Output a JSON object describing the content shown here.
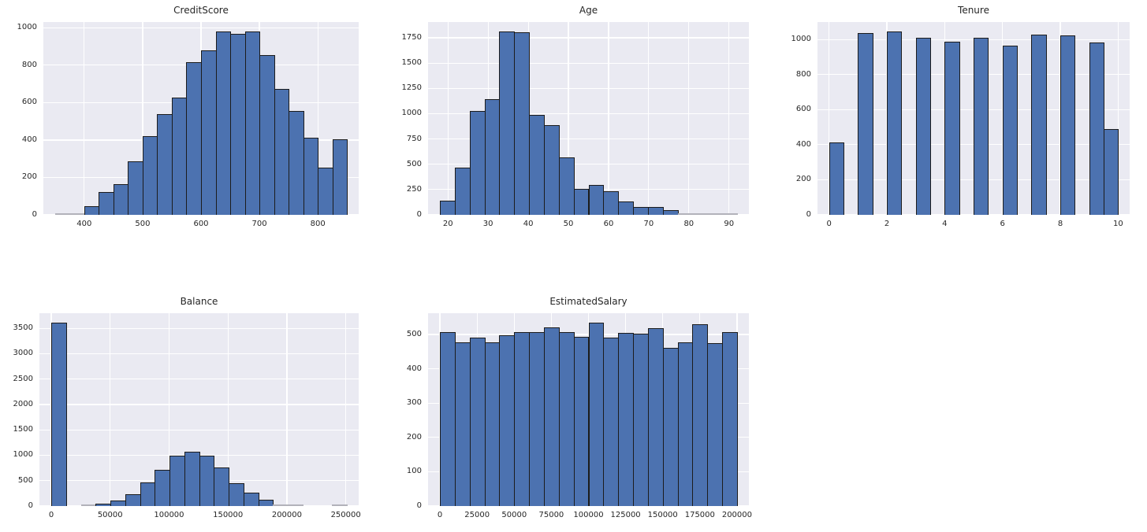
{
  "figure": {
    "background": "#ffffff",
    "description": "Grid of five histograms of dataset columns"
  },
  "style": {
    "bar_fill": "#4C72B0",
    "bar_edge": "#1c1c1c",
    "plot_background": "#eaeaf2",
    "gridline_color": "#ffffff",
    "text_color": "#262626"
  },
  "chart_data": [
    {
      "type": "bar",
      "subtype": "histogram",
      "title": "CreditScore",
      "xlabel": "",
      "ylabel": "",
      "x_range": [
        350,
        850
      ],
      "bins": 20,
      "values": [
        10,
        2,
        47,
        120,
        165,
        285,
        420,
        540,
        628,
        815,
        880,
        982,
        970,
        982,
        853,
        675,
        555,
        413,
        253,
        405
      ],
      "xticks": [
        {
          "label": "400",
          "value": 400
        },
        {
          "label": "500",
          "value": 500
        },
        {
          "label": "600",
          "value": 600
        },
        {
          "label": "700",
          "value": 700
        },
        {
          "label": "800",
          "value": 800
        }
      ],
      "yticks": [
        "0",
        "200",
        "400",
        "600",
        "800",
        "1000"
      ],
      "ytick_values": [
        0,
        200,
        400,
        600,
        800,
        1000
      ],
      "ylim": [
        0,
        1031
      ],
      "grid": true,
      "legend": false
    },
    {
      "type": "bar",
      "subtype": "histogram",
      "title": "Age",
      "xlabel": "",
      "ylabel": "",
      "x_range": [
        18,
        92
      ],
      "bins": 20,
      "values": [
        140,
        470,
        1030,
        1145,
        1815,
        1805,
        990,
        885,
        570,
        255,
        295,
        230,
        135,
        80,
        80,
        48,
        8,
        5,
        2,
        2
      ],
      "xticks": [
        {
          "label": "20",
          "value": 20
        },
        {
          "label": "30",
          "value": 30
        },
        {
          "label": "40",
          "value": 40
        },
        {
          "label": "50",
          "value": 50
        },
        {
          "label": "60",
          "value": 60
        },
        {
          "label": "70",
          "value": 70
        },
        {
          "label": "80",
          "value": 80
        },
        {
          "label": "90",
          "value": 90
        }
      ],
      "yticks": [
        "0",
        "250",
        "500",
        "750",
        "1000",
        "1250",
        "1500",
        "1750"
      ],
      "ytick_values": [
        0,
        250,
        500,
        750,
        1000,
        1250,
        1500,
        1750
      ],
      "ylim": [
        0,
        1906
      ],
      "grid": true,
      "legend": false
    },
    {
      "type": "bar",
      "subtype": "histogram",
      "title": "Tenure",
      "xlabel": "",
      "ylabel": "",
      "x_range": [
        0,
        10
      ],
      "bins": 20,
      "values": [
        413,
        0,
        1035,
        0,
        1048,
        0,
        1009,
        0,
        989,
        0,
        1012,
        0,
        967,
        0,
        1028,
        0,
        1025,
        0,
        984,
        490
      ],
      "xticks": [
        {
          "label": "0",
          "value": 0
        },
        {
          "label": "2",
          "value": 2
        },
        {
          "label": "4",
          "value": 4
        },
        {
          "label": "6",
          "value": 6
        },
        {
          "label": "8",
          "value": 8
        },
        {
          "label": "10",
          "value": 10
        }
      ],
      "yticks": [
        "0",
        "200",
        "400",
        "600",
        "800",
        "1000"
      ],
      "ytick_values": [
        0,
        200,
        400,
        600,
        800,
        1000
      ],
      "ylim": [
        0,
        1100
      ],
      "grid": true,
      "legend": false
    },
    {
      "type": "bar",
      "subtype": "histogram",
      "title": "Balance",
      "xlabel": "",
      "ylabel": "",
      "x_range": [
        0,
        250898
      ],
      "bins": 20,
      "values": [
        3617,
        0,
        5,
        45,
        110,
        235,
        460,
        720,
        1000,
        1070,
        1000,
        755,
        445,
        265,
        125,
        35,
        18,
        0,
        0,
        1
      ],
      "xticks": [
        {
          "label": "0",
          "value": 0
        },
        {
          "label": "50000",
          "value": 50000
        },
        {
          "label": "100000",
          "value": 100000
        },
        {
          "label": "150000",
          "value": 150000
        },
        {
          "label": "200000",
          "value": 200000
        },
        {
          "label": "250000",
          "value": 250000
        }
      ],
      "yticks": [
        "0",
        "500",
        "1000",
        "1500",
        "2000",
        "2500",
        "3000",
        "3500"
      ],
      "ytick_values": [
        0,
        500,
        1000,
        1500,
        2000,
        2500,
        3000,
        3500
      ],
      "ylim": [
        0,
        3798
      ],
      "grid": true,
      "legend": false
    },
    {
      "type": "bar",
      "subtype": "histogram",
      "title": "EstimatedSalary",
      "xlabel": "",
      "ylabel": "",
      "x_range": [
        0,
        200000
      ],
      "bins": 20,
      "values": [
        508,
        477,
        491,
        477,
        497,
        508,
        506,
        520,
        508,
        493,
        535,
        491,
        504,
        502,
        519,
        462,
        477,
        531,
        475,
        508
      ],
      "xticks": [
        {
          "label": "0",
          "value": 0
        },
        {
          "label": "25000",
          "value": 25000
        },
        {
          "label": "50000",
          "value": 50000
        },
        {
          "label": "75000",
          "value": 75000
        },
        {
          "label": "100000",
          "value": 100000
        },
        {
          "label": "125000",
          "value": 125000
        },
        {
          "label": "150000",
          "value": 150000
        },
        {
          "label": "175000",
          "value": 175000
        },
        {
          "label": "200000",
          "value": 200000
        }
      ],
      "yticks": [
        "0",
        "100",
        "200",
        "300",
        "400",
        "500"
      ],
      "ytick_values": [
        0,
        100,
        200,
        300,
        400,
        500
      ],
      "ylim": [
        0,
        562
      ],
      "grid": true,
      "legend": false
    }
  ]
}
